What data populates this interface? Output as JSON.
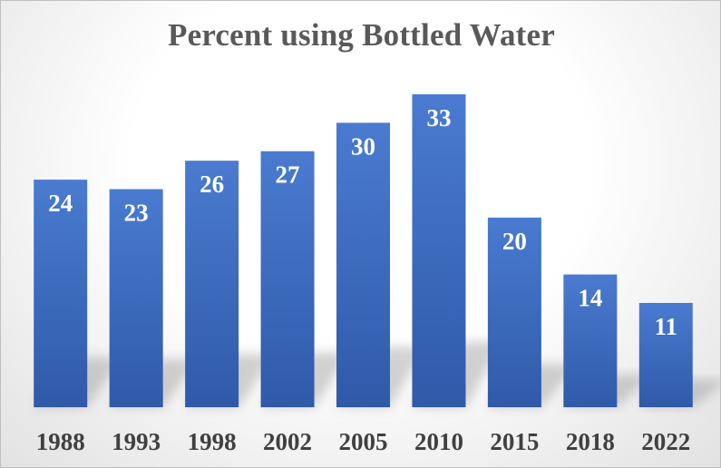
{
  "chart_data": {
    "type": "bar",
    "title": "Percent using Bottled Water",
    "categories": [
      "1988",
      "1993",
      "1998",
      "2002",
      "2005",
      "2010",
      "2015",
      "2018",
      "2022"
    ],
    "values": [
      24,
      23,
      26,
      27,
      30,
      33,
      20,
      14,
      11
    ],
    "xlabel": "",
    "ylabel": "",
    "ylim": [
      0,
      33
    ],
    "grid": false,
    "legend": "none",
    "bar_color": "#4472c4",
    "label_color": "#ffffff",
    "tick_color": "#404040"
  }
}
